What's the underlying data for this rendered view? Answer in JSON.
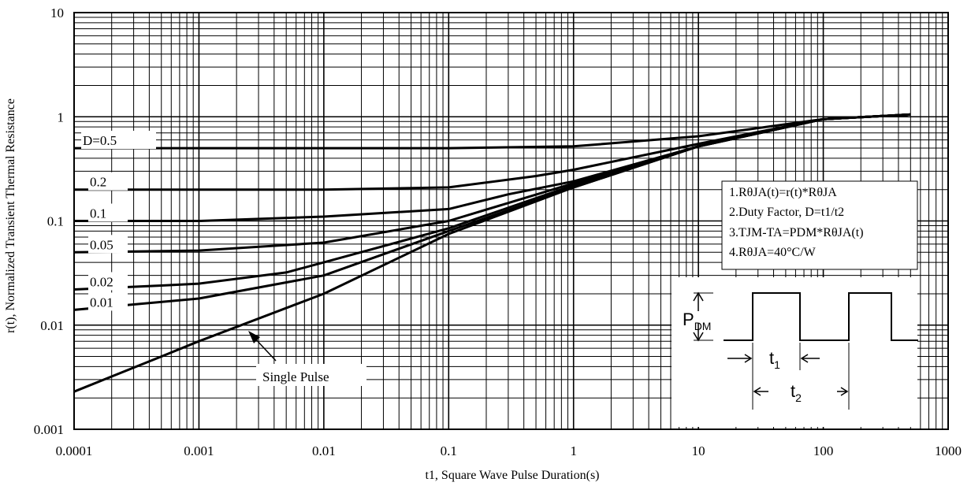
{
  "chart_data": {
    "type": "line",
    "xlabel": "t1, Square Wave Pulse Duration(s)",
    "ylabel": "r(t), Normalized Transient Thermal Resistance",
    "x_scale": "log",
    "y_scale": "log",
    "xlim": [
      0.0001,
      1000
    ],
    "ylim": [
      0.001,
      10
    ],
    "x_ticks": [
      "0.0001",
      "0.001",
      "0.01",
      "0.1",
      "1",
      "10",
      "100",
      "1000"
    ],
    "y_ticks": [
      "0.001",
      "0.01",
      "0.1",
      "1",
      "10"
    ],
    "grid": true,
    "series": [
      {
        "name": "D=0.5",
        "x": [
          0.0001,
          0.001,
          0.01,
          0.1,
          1,
          10,
          100,
          500
        ],
        "y": [
          0.5,
          0.5,
          0.5,
          0.5,
          0.52,
          0.65,
          0.95,
          1.05
        ]
      },
      {
        "name": "0.2",
        "x": [
          0.0001,
          0.001,
          0.01,
          0.1,
          0.5,
          1,
          10,
          100,
          500
        ],
        "y": [
          0.2,
          0.2,
          0.2,
          0.21,
          0.27,
          0.31,
          0.55,
          0.95,
          1.05
        ]
      },
      {
        "name": "0.1",
        "x": [
          0.0001,
          0.001,
          0.01,
          0.1,
          0.3,
          1,
          10,
          100,
          500
        ],
        "y": [
          0.1,
          0.1,
          0.11,
          0.13,
          0.18,
          0.24,
          0.52,
          0.95,
          1.05
        ]
      },
      {
        "name": "0.05",
        "x": [
          0.0001,
          0.001,
          0.01,
          0.1,
          1,
          10,
          100,
          500
        ],
        "y": [
          0.05,
          0.052,
          0.062,
          0.1,
          0.23,
          0.52,
          0.95,
          1.05
        ]
      },
      {
        "name": "0.02",
        "x": [
          0.0001,
          0.0005,
          0.001,
          0.005,
          0.01,
          0.1,
          1,
          10,
          100,
          500
        ],
        "y": [
          0.022,
          0.024,
          0.025,
          0.032,
          0.04,
          0.085,
          0.22,
          0.52,
          0.95,
          1.05
        ]
      },
      {
        "name": "0.01",
        "x": [
          0.0001,
          0.001,
          0.01,
          0.1,
          1,
          10,
          100,
          500
        ],
        "y": [
          0.014,
          0.018,
          0.03,
          0.08,
          0.21,
          0.52,
          0.95,
          1.05
        ]
      },
      {
        "name": "Single Pulse",
        "x": [
          0.0001,
          0.0005,
          0.001,
          0.01,
          0.1,
          1,
          10,
          100,
          500
        ],
        "y": [
          0.0023,
          0.005,
          0.007,
          0.02,
          0.075,
          0.21,
          0.52,
          0.95,
          1.05
        ]
      }
    ],
    "annotations": {
      "notes": [
        "1.RθJA(t)=r(t)*RθJA",
        "2.Duty Factor, D=t1/t2",
        "3.TJM-TA=PDM*RθJA(t)",
        "4.RθJA=40°C/W"
      ],
      "waveform": {
        "pdm": "P",
        "pdm_sub": "DM",
        "t1": "t",
        "t1_sub": "1",
        "t2": "t",
        "t2_sub": "2"
      }
    }
  }
}
